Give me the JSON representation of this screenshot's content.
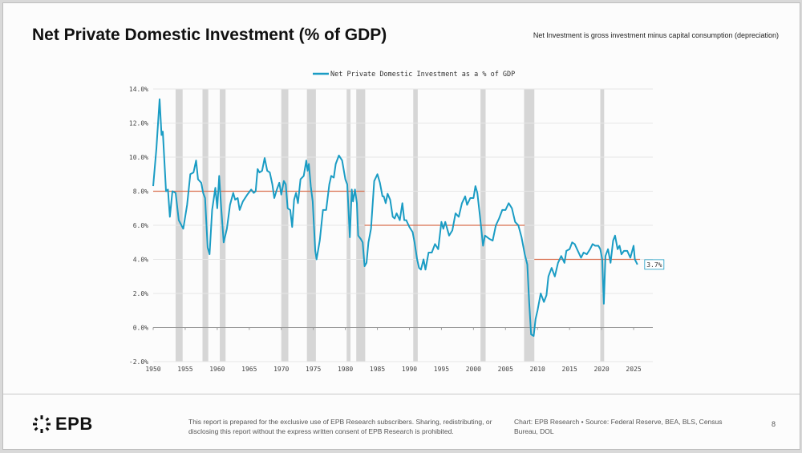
{
  "header": {
    "title": "Net Private Domestic Investment (% of GDP)",
    "subtitle": "Net Investment is gross investment minus capital consumption (depreciation)"
  },
  "footer": {
    "logo_text": "EPB",
    "disclaimer": "This report is prepared for the exclusive use of EPB Research subscribers. Sharing, redistributing, or disclosing this report without the express written consent of EPB Research is prohibited.",
    "source": "Chart: EPB Research  •  Source: Federal Reserve, BEA, BLS, Census Bureau, DOL",
    "page_number": "8"
  },
  "colors": {
    "series": "#1a9cc4",
    "average": "#d9704f",
    "recession": "#d6d6d6",
    "grid": "#e6e6e6"
  },
  "chart_data": {
    "type": "line",
    "title": "Net Private Domestic Investment (% of GDP)",
    "legend": [
      "Net Private Domestic Investment as a % of GDP"
    ],
    "legend_position": "top-center",
    "xlim": [
      1950,
      2028
    ],
    "ylim": [
      -2,
      14
    ],
    "x_ticks": [
      1950,
      1955,
      1960,
      1965,
      1970,
      1975,
      1980,
      1985,
      1990,
      1995,
      2000,
      2005,
      2010,
      2015,
      2020,
      2025
    ],
    "x_tick_labels": [
      "1950",
      "1955",
      "1960",
      "1965",
      "1970",
      "1975",
      "1980",
      "1985",
      "1990",
      "1995",
      "2000",
      "2005",
      "2010",
      "2015",
      "2020",
      "2025"
    ],
    "y_ticks": [
      -2,
      0,
      2,
      4,
      6,
      8,
      10,
      12,
      14
    ],
    "y_tick_labels": [
      "-2.0%",
      "0.0%",
      "2.0%",
      "4.0%",
      "6.0%",
      "8.0%",
      "10.0%",
      "12.0%",
      "14.0%"
    ],
    "grid": true,
    "last_value_label": "3.7%",
    "series": [
      {
        "name": "Net Private Domestic Investment as a % of GDP",
        "x": [
          1950,
          1950.5,
          1951,
          1951.3,
          1951.5,
          1952,
          1952.3,
          1952.6,
          1953,
          1953.5,
          1954,
          1954.7,
          1955.3,
          1955.8,
          1956.3,
          1956.7,
          1957,
          1957.5,
          1957.8,
          1958.1,
          1958.5,
          1958.8,
          1959.2,
          1959.7,
          1960,
          1960.3,
          1960.6,
          1961,
          1961.5,
          1962,
          1962.5,
          1962.8,
          1963.2,
          1963.5,
          1964,
          1964.7,
          1965.3,
          1965.7,
          1966,
          1966.3,
          1966.6,
          1967,
          1967.4,
          1967.8,
          1968.2,
          1968.6,
          1968.9,
          1969.3,
          1969.7,
          1970,
          1970.4,
          1970.7,
          1971,
          1971.4,
          1971.7,
          1972,
          1972.3,
          1972.6,
          1973,
          1973.5,
          1973.9,
          1974.1,
          1974.3,
          1974.6,
          1974.9,
          1975.3,
          1975.5,
          1976,
          1976.5,
          1977,
          1977.5,
          1977.8,
          1978.2,
          1978.5,
          1979,
          1979.5,
          1980,
          1980.3,
          1980.7,
          1981,
          1981.2,
          1981.5,
          1981.8,
          1982,
          1982.4,
          1982.7,
          1983,
          1983.3,
          1983.6,
          1984,
          1984.5,
          1985,
          1985.4,
          1985.8,
          1986,
          1986.3,
          1986.6,
          1987,
          1987.4,
          1987.7,
          1988,
          1988.5,
          1988.9,
          1989.2,
          1989.5,
          1990,
          1990.5,
          1990.8,
          1991.2,
          1991.5,
          1991.8,
          1992.2,
          1992.5,
          1993,
          1993.5,
          1994,
          1994.5,
          1995,
          1995.3,
          1995.6,
          1996.2,
          1996.7,
          1997.2,
          1997.7,
          1998.2,
          1998.7,
          1999,
          1999.5,
          2000,
          2000.3,
          2000.6,
          2001,
          2001.5,
          2001.8,
          2002.5,
          2003,
          2003.5,
          2004,
          2004.5,
          2005,
          2005.5,
          2006,
          2006.5,
          2007,
          2007.5,
          2008,
          2008.4,
          2008.7,
          2009,
          2009.4,
          2009.7,
          2010,
          2010.5,
          2011,
          2011.4,
          2011.7,
          2012.2,
          2012.7,
          2013.2,
          2013.7,
          2014.2,
          2014.5,
          2015,
          2015.4,
          2015.8,
          2016.3,
          2016.8,
          2017.2,
          2017.7,
          2018.2,
          2018.6,
          2019,
          2019.5,
          2019.8,
          2020.1,
          2020.35,
          2020.6,
          2021,
          2021.4,
          2021.8,
          2022.1,
          2022.5,
          2022.8,
          2023.1,
          2023.5,
          2024,
          2024.5,
          2025,
          2025.2,
          2025.6
        ],
        "y": [
          8.3,
          10.5,
          13.4,
          11.3,
          11.5,
          8.0,
          8.1,
          6.5,
          8.0,
          7.9,
          6.3,
          5.8,
          7.2,
          9.0,
          9.1,
          9.8,
          8.7,
          8.5,
          7.9,
          7.6,
          4.7,
          4.3,
          6.9,
          8.2,
          7.0,
          8.9,
          7.1,
          5.0,
          5.8,
          7.2,
          7.9,
          7.5,
          7.6,
          6.9,
          7.4,
          7.8,
          8.1,
          7.9,
          8.0,
          9.3,
          9.1,
          9.2,
          9.95,
          9.2,
          9.1,
          8.4,
          7.6,
          8.1,
          8.5,
          7.8,
          8.6,
          8.4,
          7.0,
          6.9,
          5.9,
          7.5,
          7.9,
          7.3,
          8.7,
          8.9,
          9.8,
          9.2,
          9.6,
          8.3,
          7.4,
          4.5,
          4.0,
          5.1,
          6.9,
          6.9,
          8.4,
          8.9,
          8.8,
          9.6,
          10.1,
          9.8,
          8.7,
          8.4,
          5.3,
          8.1,
          7.4,
          8.1,
          7.3,
          5.4,
          5.2,
          5.0,
          3.6,
          3.8,
          5.0,
          5.8,
          8.6,
          9.0,
          8.5,
          7.7,
          7.7,
          7.3,
          7.85,
          7.5,
          6.5,
          6.4,
          6.7,
          6.3,
          7.3,
          6.3,
          6.3,
          5.9,
          5.6,
          5.0,
          4.0,
          3.5,
          3.4,
          4.0,
          3.4,
          4.4,
          4.4,
          4.9,
          4.6,
          6.2,
          5.8,
          6.2,
          5.4,
          5.7,
          6.7,
          6.5,
          7.3,
          7.7,
          7.2,
          7.6,
          7.6,
          8.3,
          7.9,
          6.6,
          4.8,
          5.4,
          5.2,
          5.1,
          6.0,
          6.4,
          6.9,
          6.9,
          7.3,
          7.0,
          6.2,
          6.0,
          5.3,
          4.3,
          3.7,
          1.5,
          -0.4,
          -0.5,
          0.5,
          1.0,
          2.0,
          1.5,
          1.9,
          3.0,
          3.5,
          3.0,
          3.8,
          4.2,
          3.8,
          4.5,
          4.6,
          5.0,
          4.9,
          4.5,
          4.1,
          4.4,
          4.3,
          4.6,
          4.9,
          4.8,
          4.8,
          4.6,
          4.0,
          1.4,
          4.2,
          4.6,
          3.8,
          5.1,
          5.4,
          4.6,
          4.8,
          4.3,
          4.5,
          4.5,
          4.1,
          4.8,
          4.0,
          3.7
        ]
      }
    ],
    "period_averages": [
      {
        "start": 1950,
        "end": 1983,
        "value": 8.0
      },
      {
        "start": 1983,
        "end": 2008,
        "value": 6.0
      },
      {
        "start": 2009.5,
        "end": 2026,
        "value": 4.0
      }
    ],
    "recessions": [
      [
        1953.5,
        1954.6
      ],
      [
        1957.7,
        1958.6
      ],
      [
        1960.4,
        1961.3
      ],
      [
        1970,
        1971.1
      ],
      [
        1974,
        1975.4
      ],
      [
        1980.2,
        1980.8
      ],
      [
        1981.7,
        1983.1
      ],
      [
        1990.6,
        1991.3
      ],
      [
        2001.1,
        2001.9
      ],
      [
        2007.9,
        2009.5
      ],
      [
        2019.8,
        2020.4
      ]
    ]
  }
}
